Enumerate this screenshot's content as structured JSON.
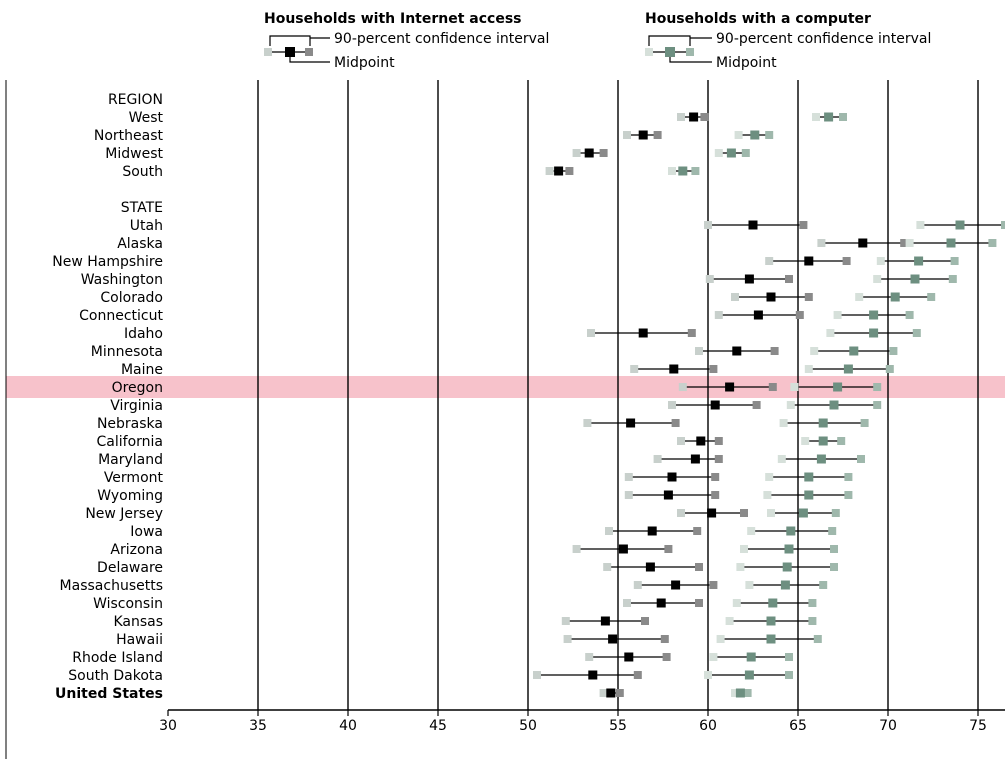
{
  "legend": {
    "internet": {
      "title": "Households with Internet access",
      "ci_label": "90-percent confidence interval",
      "mid_label": "Midpoint"
    },
    "computer": {
      "title": "Households with a computer",
      "ci_label": "90-percent confidence interval",
      "mid_label": "Midpoint"
    }
  },
  "colors": {
    "internet_mid": "#000000",
    "internet_low": "#c8d0cc",
    "internet_high": "#8a8a8a",
    "computer_mid": "#6d8f80",
    "computer_low": "#d6e0da",
    "computer_high": "#9fb8ac",
    "highlight": "#f7c2cb",
    "highlight_text": "#555555",
    "gridline": "#000000"
  },
  "chart_data": {
    "type": "dot-interval",
    "title": "",
    "xlabel": "",
    "ylabel": "",
    "xlim": [
      30,
      76.5
    ],
    "xticks": [
      30,
      35,
      40,
      45,
      50,
      55,
      60,
      65,
      70,
      75
    ],
    "grid": "vertical",
    "highlight_row": "Oregon",
    "series": [
      {
        "name": "Households with Internet access"
      },
      {
        "name": "Households with a computer"
      }
    ],
    "rows": [
      {
        "label": "REGION",
        "header": true
      },
      {
        "label": "West",
        "internet": [
          58.5,
          59.2,
          59.8
        ],
        "computer": [
          66.0,
          66.7,
          67.5
        ]
      },
      {
        "label": "Northeast",
        "internet": [
          55.5,
          56.4,
          57.2
        ],
        "computer": [
          61.7,
          62.6,
          63.4
        ]
      },
      {
        "label": "Midwest",
        "internet": [
          52.7,
          53.4,
          54.2
        ],
        "computer": [
          60.6,
          61.3,
          62.1
        ]
      },
      {
        "label": "South",
        "internet": [
          51.2,
          51.7,
          52.3
        ],
        "computer": [
          58.0,
          58.6,
          59.3
        ]
      },
      {
        "label": "",
        "spacer": true
      },
      {
        "label": "STATE",
        "header": true
      },
      {
        "label": "Utah",
        "internet": [
          60.0,
          62.5,
          65.3
        ],
        "computer": [
          71.8,
          74.0,
          76.5
        ]
      },
      {
        "label": "Alaska",
        "internet": [
          66.3,
          68.6,
          70.9
        ],
        "computer": [
          71.2,
          73.5,
          75.8
        ]
      },
      {
        "label": "New Hampshire",
        "internet": [
          63.4,
          65.6,
          67.7
        ],
        "computer": [
          69.6,
          71.7,
          73.7
        ]
      },
      {
        "label": "Washington",
        "internet": [
          60.1,
          62.3,
          64.5
        ],
        "computer": [
          69.4,
          71.5,
          73.6
        ]
      },
      {
        "label": "Colorado",
        "internet": [
          61.5,
          63.5,
          65.6
        ],
        "computer": [
          68.4,
          70.4,
          72.4
        ]
      },
      {
        "label": "Connecticut",
        "internet": [
          60.6,
          62.8,
          65.1
        ],
        "computer": [
          67.2,
          69.2,
          71.2
        ]
      },
      {
        "label": "Idaho",
        "internet": [
          53.5,
          56.4,
          59.1
        ],
        "computer": [
          66.8,
          69.2,
          71.6
        ]
      },
      {
        "label": "Minnesota",
        "internet": [
          59.5,
          61.6,
          63.7
        ],
        "computer": [
          65.9,
          68.1,
          70.3
        ]
      },
      {
        "label": "Maine",
        "internet": [
          55.9,
          58.1,
          60.3
        ],
        "computer": [
          65.6,
          67.8,
          70.1
        ]
      },
      {
        "label": "Oregon",
        "internet": [
          58.6,
          61.2,
          63.6
        ],
        "computer": [
          64.8,
          67.2,
          69.4
        ]
      },
      {
        "label": "Virginia",
        "internet": [
          58.0,
          60.4,
          62.7
        ],
        "computer": [
          64.6,
          67.0,
          69.4
        ]
      },
      {
        "label": "Nebraska",
        "internet": [
          53.3,
          55.7,
          58.2
        ],
        "computer": [
          64.2,
          66.4,
          68.7
        ]
      },
      {
        "label": "California",
        "internet": [
          58.5,
          59.6,
          60.6
        ],
        "computer": [
          65.4,
          66.4,
          67.4
        ]
      },
      {
        "label": "Maryland",
        "internet": [
          57.2,
          59.3,
          60.6
        ],
        "computer": [
          64.1,
          66.3,
          68.5
        ]
      },
      {
        "label": "Vermont",
        "internet": [
          55.6,
          58.0,
          60.4
        ],
        "computer": [
          63.4,
          65.6,
          67.8
        ]
      },
      {
        "label": "Wyoming",
        "internet": [
          55.6,
          57.8,
          60.4
        ],
        "computer": [
          63.3,
          65.6,
          67.8
        ]
      },
      {
        "label": "New Jersey",
        "internet": [
          58.5,
          60.2,
          62.0
        ],
        "computer": [
          63.5,
          65.3,
          67.1
        ]
      },
      {
        "label": "Iowa",
        "internet": [
          54.5,
          56.9,
          59.4
        ],
        "computer": [
          62.4,
          64.6,
          66.9
        ]
      },
      {
        "label": "Arizona",
        "internet": [
          52.7,
          55.3,
          57.8
        ],
        "computer": [
          62.0,
          64.5,
          67.0
        ]
      },
      {
        "label": "Delaware",
        "internet": [
          54.4,
          56.8,
          59.5
        ],
        "computer": [
          61.8,
          64.4,
          67.0
        ]
      },
      {
        "label": "Massachusetts",
        "internet": [
          56.1,
          58.2,
          60.3
        ],
        "computer": [
          62.3,
          64.3,
          66.4
        ]
      },
      {
        "label": "Wisconsin",
        "internet": [
          55.5,
          57.4,
          59.5
        ],
        "computer": [
          61.6,
          63.6,
          65.8
        ]
      },
      {
        "label": "Kansas",
        "internet": [
          52.1,
          54.3,
          56.5
        ],
        "computer": [
          61.2,
          63.5,
          65.8
        ]
      },
      {
        "label": "Hawaii",
        "internet": [
          52.2,
          54.7,
          57.6
        ],
        "computer": [
          60.7,
          63.5,
          66.1
        ]
      },
      {
        "label": "Rhode Island",
        "internet": [
          53.4,
          55.6,
          57.7
        ],
        "computer": [
          60.3,
          62.4,
          64.5
        ]
      },
      {
        "label": "South Dakota",
        "internet": [
          50.5,
          53.6,
          56.1
        ],
        "computer": [
          60.0,
          62.3,
          64.5
        ]
      },
      {
        "label": "United States",
        "bold": true,
        "internet": [
          54.2,
          54.6,
          55.1
        ],
        "computer": [
          61.5,
          61.8,
          62.2
        ]
      }
    ]
  }
}
